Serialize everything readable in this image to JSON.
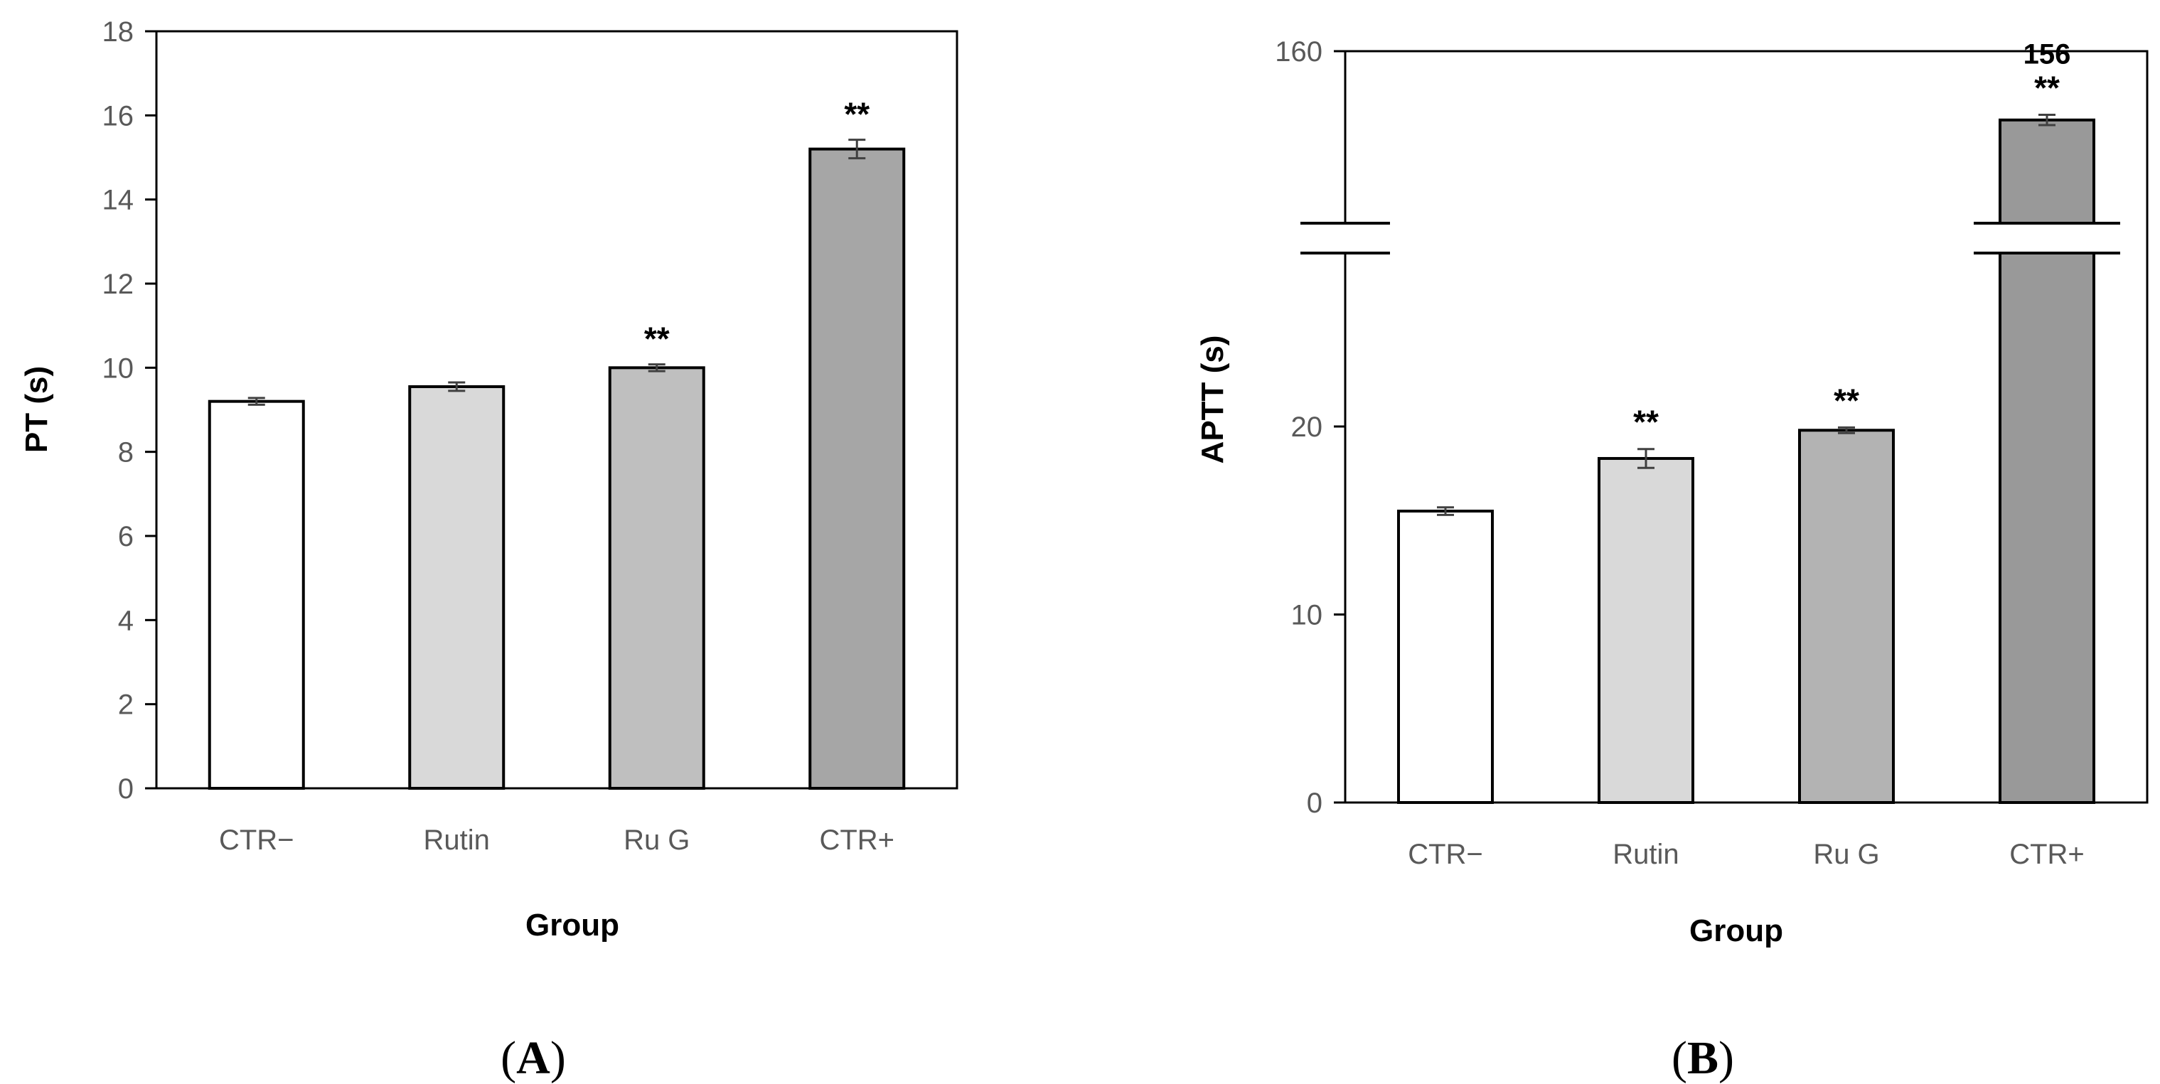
{
  "chart_data": [
    {
      "type": "bar",
      "panel_label": "A",
      "xlabel": "Group",
      "ylabel": "PT (s)",
      "ylim": [
        0,
        18
      ],
      "yticks": [
        0,
        2,
        4,
        6,
        8,
        10,
        12,
        14,
        16,
        18
      ],
      "categories": [
        "CTR−",
        "Rutin",
        "Ru G",
        "CTR+"
      ],
      "values": [
        9.2,
        9.55,
        10.0,
        15.2
      ],
      "errors": [
        0.08,
        0.1,
        0.08,
        0.22
      ],
      "significance": [
        "",
        "",
        "**",
        "**"
      ],
      "colors": [
        "#ffffff",
        "#d9d9d9",
        "#bfbfbf",
        "#a6a6a6"
      ]
    },
    {
      "type": "bar",
      "panel_label": "B",
      "xlabel": "Group",
      "ylabel": "APTT (s)",
      "axis_break": true,
      "yticks": [
        0,
        10,
        20,
        160
      ],
      "categories": [
        "CTR−",
        "Rutin",
        "Ru G",
        "CTR+"
      ],
      "values": [
        15.5,
        18.3,
        19.8,
        156
      ],
      "errors": [
        0.2,
        0.5,
        0.15,
        0.3
      ],
      "significance": [
        "",
        "**",
        "**",
        "**"
      ],
      "value_labels": [
        "",
        "",
        "",
        "156"
      ],
      "colors": [
        "#ffffff",
        "#d9d9d9",
        "#b3b3b3",
        "#999999"
      ]
    }
  ]
}
